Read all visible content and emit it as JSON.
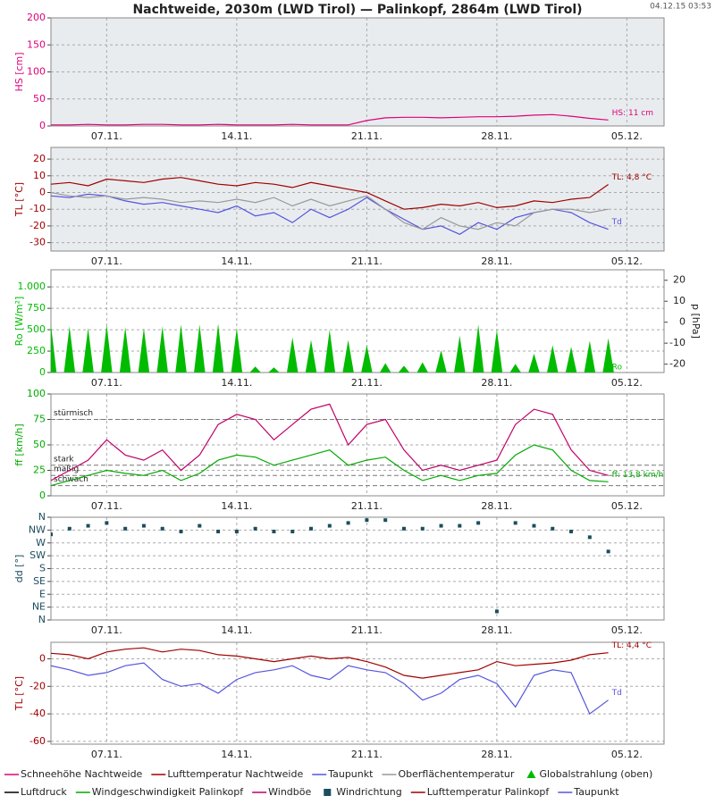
{
  "title": "Nachtweide, 2030m (LWD Tirol) — Palinkopf, 2864m (LWD Tirol)",
  "timestamp": "04.12.15 03:53",
  "chart_data": [
    {
      "type": "line",
      "ylabel": "HS [cm]",
      "background": "#e8ecef",
      "categories": [
        null,
        null,
        null,
        "07.11.",
        null,
        null,
        null,
        null,
        null,
        null,
        "14.11.",
        null,
        null,
        null,
        null,
        null,
        null,
        "21.11.",
        null,
        null,
        null,
        null,
        null,
        null,
        "28.11.",
        null,
        null,
        null,
        null,
        null,
        null,
        "05.12.",
        null,
        null
      ],
      "ylim": [
        0,
        200
      ],
      "yticks": [
        0,
        50,
        100,
        150,
        200
      ],
      "series": [
        {
          "name": "Schneehöhe Nachtweide",
          "color": "#e0007a",
          "end_label": "HS: 11 cm",
          "values": [
            2,
            2,
            3,
            2,
            2,
            3,
            3,
            2,
            2,
            3,
            2,
            2,
            2,
            3,
            2,
            2,
            2,
            10,
            15,
            16,
            16,
            15,
            16,
            17,
            17,
            18,
            20,
            21,
            18,
            14,
            11,
            null,
            null,
            null
          ]
        }
      ]
    },
    {
      "type": "line",
      "ylabel": "TL [°C]",
      "background": "#e8ecef",
      "categories": [
        null,
        null,
        null,
        "07.11.",
        null,
        null,
        null,
        null,
        null,
        null,
        "14.11.",
        null,
        null,
        null,
        null,
        null,
        null,
        "21.11.",
        null,
        null,
        null,
        null,
        null,
        null,
        "28.11.",
        null,
        null,
        null,
        null,
        null,
        null,
        "05.12.",
        null,
        null
      ],
      "ylim": [
        -35,
        27
      ],
      "yticks": [
        -30,
        -20,
        -10,
        0,
        10,
        20
      ],
      "series": [
        {
          "name": "Lufttemperatur Nachtweide",
          "color": "#a00000",
          "end_label": "TL: 4,8 °C",
          "values": [
            5,
            6,
            4,
            8,
            7,
            6,
            8,
            9,
            7,
            5,
            4,
            6,
            5,
            3,
            6,
            4,
            2,
            0,
            -5,
            -10,
            -9,
            -7,
            -8,
            -6,
            -9,
            -8,
            -5,
            -6,
            -4,
            -3,
            4.8,
            null,
            null,
            null
          ]
        },
        {
          "name": "Taupunkt",
          "color": "#5555dd",
          "end_label": "Td",
          "values": [
            -2,
            -3,
            -1,
            -2,
            -5,
            -7,
            -6,
            -8,
            -10,
            -12,
            -8,
            -14,
            -12,
            -18,
            -10,
            -15,
            -10,
            -3,
            -10,
            -16,
            -22,
            -20,
            -25,
            -18,
            -22,
            -15,
            -12,
            -10,
            -12,
            -18,
            -22,
            null,
            null,
            null
          ]
        },
        {
          "name": "Oberflächentemperatur",
          "color": "#999999",
          "values": [
            0,
            -2,
            -3,
            -2,
            -4,
            -3,
            -4,
            -6,
            -5,
            -6,
            -4,
            -6,
            -3,
            -8,
            -4,
            -8,
            -5,
            -2,
            -10,
            -18,
            -22,
            -15,
            -20,
            -22,
            -18,
            -20,
            -12,
            -10,
            -10,
            -12,
            -10,
            null,
            null,
            null
          ]
        }
      ]
    },
    {
      "type": "bar",
      "ylabel": "Ro [W/m²]",
      "y2label": "p [hPa]",
      "categories": [
        null,
        null,
        null,
        "07.11.",
        null,
        null,
        null,
        null,
        null,
        null,
        "14.11.",
        null,
        null,
        null,
        null,
        null,
        null,
        "21.11.",
        null,
        null,
        null,
        null,
        null,
        null,
        "28.11.",
        null,
        null,
        null,
        null,
        null,
        null,
        "05.12.",
        null,
        null
      ],
      "ylim": [
        0,
        1200
      ],
      "yticks": [
        0,
        250,
        500,
        750,
        {
          "value": 1000,
          "label": "1.000"
        }
      ],
      "y2lim": [
        -24,
        25
      ],
      "y2ticks": [
        -20,
        -10,
        0,
        10,
        20
      ],
      "series": [
        {
          "name": "Globalstrahlung (oben)",
          "color": "#00bb00",
          "end_label": "Ro",
          "values": [
            560,
            540,
            520,
            560,
            530,
            520,
            540,
            560,
            560,
            570,
            520,
            70,
            60,
            410,
            380,
            500,
            380,
            320,
            110,
            80,
            120,
            260,
            430,
            560,
            500,
            100,
            220,
            320,
            300,
            370,
            400,
            null,
            null,
            null
          ]
        },
        {
          "name": "Luftdruck",
          "color": "#000000",
          "axis": "y2",
          "values": [
            null,
            null,
            null,
            null,
            null,
            null,
            null,
            null,
            null,
            null,
            null,
            null,
            null,
            null,
            null,
            null,
            null,
            null,
            null,
            null,
            null,
            null,
            null,
            null,
            null,
            null,
            null,
            null,
            null,
            null,
            null,
            null,
            null,
            null
          ]
        }
      ]
    },
    {
      "type": "line",
      "ylabel": "ff [km/h]",
      "categories": [
        null,
        null,
        null,
        "07.11.",
        null,
        null,
        null,
        null,
        null,
        null,
        "14.11.",
        null,
        null,
        null,
        null,
        null,
        null,
        "21.11.",
        null,
        null,
        null,
        null,
        null,
        null,
        "28.11.",
        null,
        null,
        null,
        null,
        null,
        null,
        "05.12.",
        null,
        null
      ],
      "ylim": [
        0,
        100
      ],
      "yticks": [
        0,
        25,
        50,
        75,
        100
      ],
      "thresholds": [
        {
          "value": 75,
          "label": "stürmisch"
        },
        {
          "value": 30,
          "label": "stark"
        },
        {
          "value": 20,
          "label": "mäßig"
        },
        {
          "value": 10,
          "label": "schwach"
        }
      ],
      "series": [
        {
          "name": "Windgeschwindigkeit Palinkopf",
          "color": "#00aa00",
          "end_label": "ff: 13,8 km/h",
          "values": [
            10,
            15,
            20,
            25,
            22,
            20,
            25,
            15,
            22,
            35,
            40,
            38,
            30,
            35,
            40,
            45,
            30,
            35,
            38,
            25,
            15,
            20,
            15,
            20,
            22,
            40,
            50,
            45,
            25,
            15,
            13.8,
            null,
            null,
            null
          ]
        },
        {
          "name": "Windböe",
          "color": "#c0006a",
          "values": [
            15,
            25,
            35,
            55,
            40,
            35,
            45,
            25,
            40,
            70,
            80,
            75,
            55,
            70,
            85,
            90,
            50,
            70,
            75,
            45,
            25,
            30,
            25,
            30,
            35,
            70,
            85,
            80,
            45,
            25,
            20,
            null,
            null,
            null
          ]
        }
      ]
    },
    {
      "type": "scatter",
      "ylabel": "dd [°]",
      "categories": [
        null,
        null,
        null,
        "07.11.",
        null,
        null,
        null,
        null,
        null,
        null,
        "14.11.",
        null,
        null,
        null,
        null,
        null,
        null,
        "21.11.",
        null,
        null,
        null,
        null,
        null,
        null,
        "28.11.",
        null,
        null,
        null,
        null,
        null,
        null,
        "05.12.",
        null,
        null
      ],
      "ylim": [
        0,
        360
      ],
      "yticks": [
        {
          "value": 0,
          "label": "N"
        },
        {
          "value": 45,
          "label": "NE"
        },
        {
          "value": 90,
          "label": "E"
        },
        {
          "value": 135,
          "label": "SE"
        },
        {
          "value": 180,
          "label": "S"
        },
        {
          "value": 225,
          "label": "SW"
        },
        {
          "value": 270,
          "label": "W"
        },
        {
          "value": 315,
          "label": "NW"
        },
        {
          "value": 360,
          "label": "N"
        }
      ],
      "series": [
        {
          "name": "Windrichtung",
          "color": "#1a4d5e",
          "values": [
            300,
            320,
            330,
            340,
            320,
            330,
            320,
            310,
            330,
            310,
            310,
            320,
            310,
            310,
            320,
            330,
            340,
            350,
            350,
            320,
            320,
            330,
            330,
            340,
            30,
            340,
            330,
            320,
            310,
            290,
            240,
            null,
            null,
            null
          ]
        }
      ]
    },
    {
      "type": "line",
      "ylabel": "TL [°C]",
      "categories": [
        null,
        null,
        null,
        "07.11.",
        null,
        null,
        null,
        null,
        null,
        null,
        "14.11.",
        null,
        null,
        null,
        null,
        null,
        null,
        "21.11.",
        null,
        null,
        null,
        null,
        null,
        null,
        "28.11.",
        null,
        null,
        null,
        null,
        null,
        null,
        "05.12.",
        null,
        null
      ],
      "ylim": [
        -62,
        12
      ],
      "yticks": [
        -60,
        -40,
        -20,
        0
      ],
      "series": [
        {
          "name": "Lufttemperatur Palinkopf",
          "color": "#a00000",
          "end_label": "TL: 4,4 °C",
          "values": [
            4,
            3,
            0,
            5,
            7,
            8,
            5,
            7,
            6,
            3,
            2,
            0,
            -2,
            0,
            2,
            0,
            1,
            -2,
            -6,
            -12,
            -14,
            -12,
            -10,
            -8,
            -2,
            -5,
            -4,
            -3,
            -1,
            3,
            4.4,
            null,
            null,
            null
          ]
        },
        {
          "name": "Taupunkt",
          "color": "#5555dd",
          "end_label": "Td",
          "values": [
            -5,
            -8,
            -12,
            -10,
            -5,
            -3,
            -15,
            -20,
            -18,
            -25,
            -15,
            -10,
            -8,
            -5,
            -12,
            -15,
            -5,
            -8,
            -10,
            -18,
            -30,
            -25,
            -15,
            -12,
            -18,
            -35,
            -12,
            -8,
            -10,
            -40,
            -30,
            null,
            null,
            null
          ]
        }
      ]
    }
  ]
}
